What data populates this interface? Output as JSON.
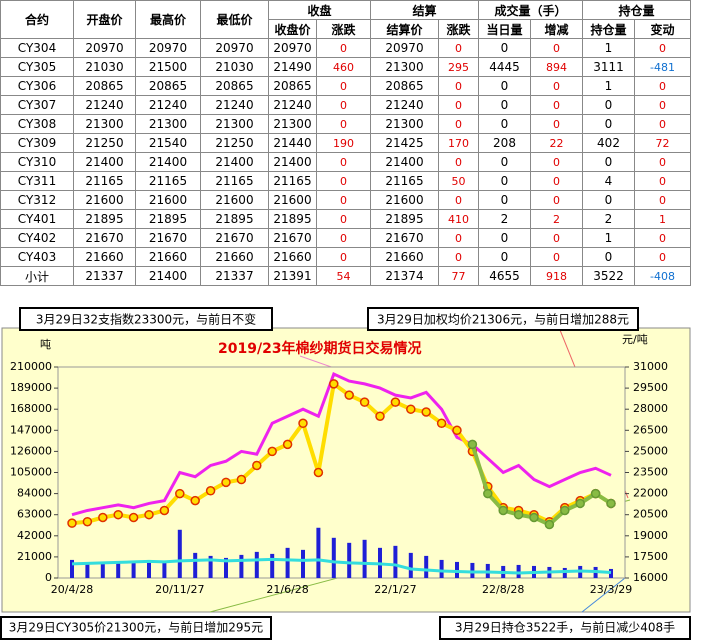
{
  "table": {
    "header_top": [
      "合约",
      "开盘价",
      "最高价",
      "最低价",
      "收盘",
      "结算",
      "成交量（手）",
      "持仓量"
    ],
    "header_sub": [
      "收盘价",
      "涨跌",
      "结算价",
      "涨跌",
      "当日量",
      "增减",
      "持仓量",
      "变动"
    ],
    "rows": [
      [
        "CY304",
        20970,
        20970,
        20970,
        20970,
        0,
        20970,
        0,
        0,
        0,
        1,
        0
      ],
      [
        "CY305",
        21030,
        21500,
        21030,
        21490,
        460,
        21300,
        295,
        4445,
        894,
        3111,
        -481
      ],
      [
        "CY306",
        20865,
        20865,
        20865,
        20865,
        0,
        20865,
        0,
        0,
        0,
        1,
        0
      ],
      [
        "CY307",
        21240,
        21240,
        21240,
        21240,
        0,
        21240,
        0,
        0,
        0,
        0,
        0
      ],
      [
        "CY308",
        21300,
        21300,
        21300,
        21300,
        0,
        21300,
        0,
        0,
        0,
        0,
        0
      ],
      [
        "CY309",
        21250,
        21540,
        21250,
        21440,
        190,
        21425,
        170,
        208,
        22,
        402,
        72
      ],
      [
        "CY310",
        21400,
        21400,
        21400,
        21400,
        0,
        21400,
        0,
        0,
        0,
        0,
        0
      ],
      [
        "CY311",
        21165,
        21165,
        21165,
        21165,
        0,
        21165,
        50,
        0,
        0,
        4,
        0
      ],
      [
        "CY312",
        21600,
        21600,
        21600,
        21600,
        0,
        21600,
        0,
        0,
        0,
        0,
        0
      ],
      [
        "CY401",
        21895,
        21895,
        21895,
        21895,
        0,
        21895,
        410,
        2,
        2,
        2,
        1
      ],
      [
        "CY402",
        21670,
        21670,
        21670,
        21670,
        0,
        21670,
        0,
        0,
        0,
        1,
        0
      ],
      [
        "CY403",
        21660,
        21660,
        21660,
        21660,
        0,
        21660,
        0,
        0,
        0,
        0,
        0
      ],
      [
        "小计",
        21337,
        21400,
        21337,
        21391,
        54,
        21374,
        77,
        4655,
        918,
        3522,
        -408
      ]
    ]
  },
  "annotations": [
    "3月29日32支指数23300元，与前日不变",
    "3月29日加权均价21306元，与前日增加288元",
    "3月29日CY305价21300元，与前日增加295元",
    "3月29日持仓3522手，与前日减少408手"
  ],
  "chart_data": {
    "type": "combo",
    "title": "2019/23年棉纱期货日交易情况",
    "ylabel": "吨",
    "y2label": "元/吨",
    "categories": [
      "20/4/28",
      null,
      null,
      null,
      null,
      null,
      null,
      "20/11/27",
      null,
      null,
      null,
      null,
      null,
      null,
      "21/6/28",
      null,
      null,
      null,
      null,
      null,
      null,
      "22/1/27",
      null,
      null,
      null,
      null,
      null,
      null,
      "22/8/28",
      null,
      null,
      null,
      null,
      null,
      null,
      "23/3/29"
    ],
    "ylim": [
      0,
      210000
    ],
    "yticks": [
      0,
      21000,
      42000,
      63000,
      84000,
      105000,
      126000,
      147000,
      168000,
      189000,
      210000
    ],
    "y2lim": [
      16000,
      31000
    ],
    "y2ticks": [
      16000,
      17500,
      19000,
      20500,
      22000,
      23500,
      25000,
      26500,
      28000,
      29500,
      31000
    ],
    "series": [
      {
        "type": "bar",
        "color": "#1f1fd6",
        "values": [
          18000,
          15000,
          14000,
          16000,
          15000,
          17000,
          16000,
          48000,
          25000,
          22000,
          20000,
          23000,
          26000,
          24000,
          30000,
          28000,
          50000,
          40000,
          35000,
          38000,
          30000,
          32000,
          25000,
          22000,
          18000,
          16000,
          15000,
          14000,
          12000,
          13000,
          12000,
          11000,
          10000,
          12000,
          11000,
          9000
        ]
      },
      {
        "type": "line",
        "color": "#33dddd",
        "values": [
          14000,
          14500,
          15000,
          15500,
          16000,
          16500,
          16000,
          17000,
          17500,
          18000,
          17000,
          17500,
          18000,
          18500,
          18000,
          17500,
          18000,
          16000,
          15000,
          14500,
          14000,
          13000,
          9000,
          8000,
          7000,
          6500,
          6000,
          6000,
          5500,
          5000,
          5500,
          6000,
          6500,
          7000,
          6500,
          5500
        ]
      },
      {
        "type": "line",
        "axis": "y2",
        "color": "#ee22ee",
        "values": [
          20500,
          20800,
          21000,
          21200,
          21000,
          21300,
          21500,
          23500,
          23200,
          24000,
          24300,
          25000,
          24800,
          27000,
          27500,
          28000,
          27500,
          30500,
          30000,
          29800,
          29500,
          29000,
          28800,
          29200,
          28000,
          26000,
          25500,
          24500,
          23500,
          24000,
          23000,
          22500,
          23000,
          23500,
          23800,
          23300
        ]
      },
      {
        "type": "dots",
        "axis": "y2",
        "color": "#ffdd00",
        "edge": "#e03000",
        "values": [
          19900,
          20000,
          20300,
          20500,
          20300,
          20500,
          20800,
          22000,
          21500,
          22200,
          22800,
          23000,
          24000,
          25000,
          25500,
          27000,
          23500,
          29800,
          29000,
          28500,
          27500,
          28500,
          28000,
          27800,
          27000,
          26500,
          25000,
          22500,
          21000,
          20800,
          20500,
          20000,
          21000,
          21500,
          22000,
          21300
        ]
      },
      {
        "type": "dots",
        "axis": "y2",
        "color": "#88bb44",
        "edge": "#669933",
        "values": [
          null,
          null,
          null,
          null,
          null,
          null,
          null,
          null,
          null,
          null,
          null,
          null,
          null,
          null,
          null,
          null,
          null,
          null,
          null,
          null,
          null,
          null,
          null,
          null,
          null,
          null,
          25500,
          22000,
          20800,
          20500,
          20300,
          19800,
          20800,
          21300,
          22000,
          21300
        ]
      }
    ]
  }
}
